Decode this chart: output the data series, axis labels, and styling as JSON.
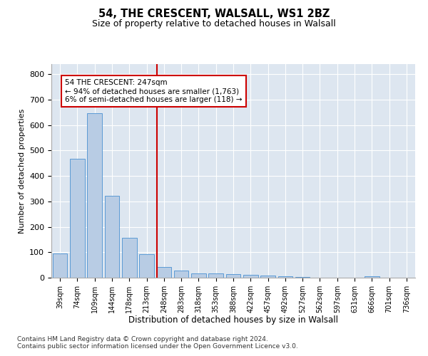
{
  "title1": "54, THE CRESCENT, WALSALL, WS1 2BZ",
  "title2": "Size of property relative to detached houses in Walsall",
  "xlabel": "Distribution of detached houses by size in Walsall",
  "ylabel": "Number of detached properties",
  "categories": [
    "39sqm",
    "74sqm",
    "109sqm",
    "144sqm",
    "178sqm",
    "213sqm",
    "248sqm",
    "283sqm",
    "318sqm",
    "353sqm",
    "388sqm",
    "422sqm",
    "457sqm",
    "492sqm",
    "527sqm",
    "562sqm",
    "597sqm",
    "631sqm",
    "666sqm",
    "701sqm",
    "736sqm"
  ],
  "values": [
    95,
    468,
    648,
    323,
    157,
    93,
    43,
    27,
    18,
    17,
    15,
    12,
    8,
    6,
    2,
    1,
    1,
    0,
    7,
    1,
    0
  ],
  "bar_color": "#b8cce4",
  "bar_edge_color": "#5b9bd5",
  "annotation_line1": "54 THE CRESCENT: 247sqm",
  "annotation_line2": "← 94% of detached houses are smaller (1,763)",
  "annotation_line3": "6% of semi-detached houses are larger (118) →",
  "annotation_box_color": "#cc0000",
  "vline_color": "#cc0000",
  "vline_x_index": 6,
  "ylim": [
    0,
    840
  ],
  "yticks": [
    0,
    100,
    200,
    300,
    400,
    500,
    600,
    700,
    800
  ],
  "background_color": "#dde6f0",
  "grid_color": "#ffffff",
  "footer1": "Contains HM Land Registry data © Crown copyright and database right 2024.",
  "footer2": "Contains public sector information licensed under the Open Government Licence v3.0."
}
